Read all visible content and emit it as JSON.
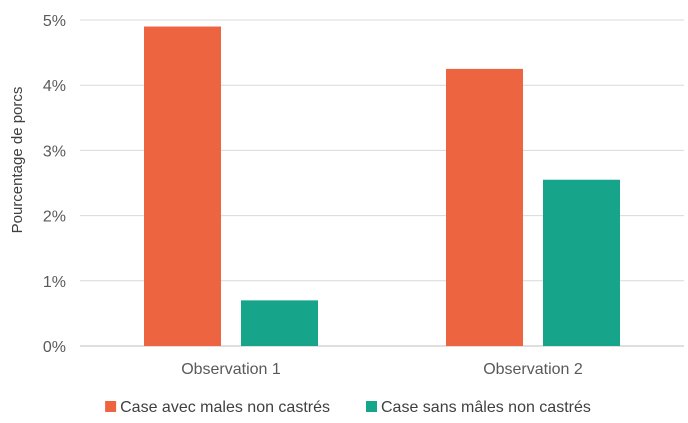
{
  "chart_data": {
    "type": "bar",
    "title": "",
    "xlabel": "",
    "ylabel": "Pourcentage de porcs",
    "categories": [
      "Observation 1",
      "Observation 2"
    ],
    "series": [
      {
        "name": "Case avec males non  castrés",
        "values": [
          4.9,
          4.25
        ],
        "color": "#ec6440"
      },
      {
        "name": "Case sans mâles non  castrés",
        "values": [
          0.7,
          2.55
        ],
        "color": "#16a48a"
      }
    ],
    "ylim": [
      0,
      5
    ],
    "yticks": [
      0,
      1,
      2,
      3,
      4,
      5
    ],
    "ytick_format": "%",
    "grid": true,
    "legend": "bottom"
  }
}
